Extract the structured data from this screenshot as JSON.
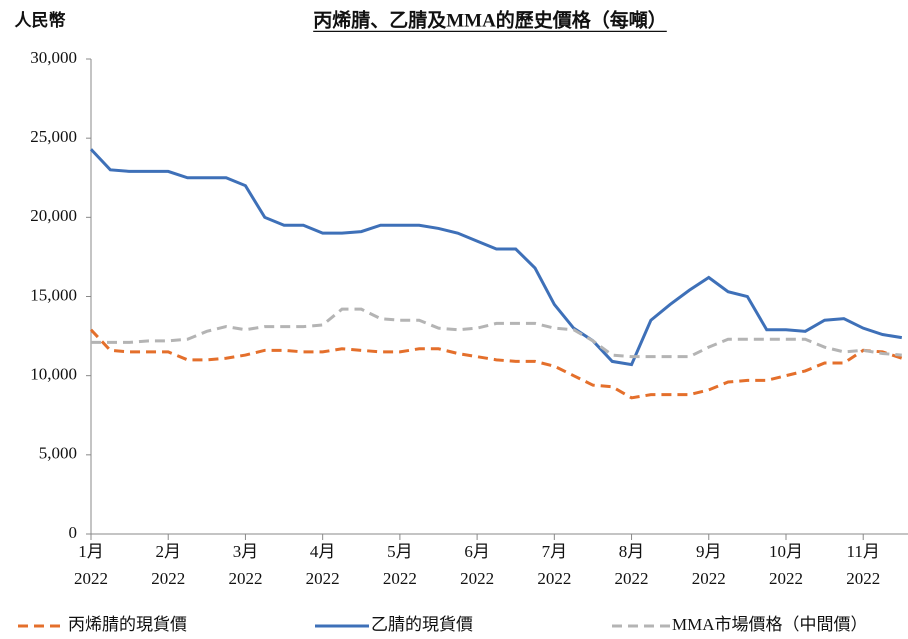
{
  "chart_data": {
    "type": "line",
    "title": "丙烯腈、乙腈及MMA的歷史價格（每噸）",
    "y_axis_label": "人民幣",
    "x": [
      0,
      0.25,
      0.5,
      0.75,
      1,
      1.25,
      1.5,
      1.75,
      2,
      2.25,
      2.5,
      2.75,
      3,
      3.25,
      3.5,
      3.75,
      4,
      4.25,
      4.5,
      4.75,
      5,
      5.25,
      5.5,
      5.75,
      6,
      6.25,
      6.5,
      6.75,
      7,
      7.25,
      7.5,
      7.75,
      8,
      8.25,
      8.5,
      8.75,
      9,
      9.25,
      9.5,
      9.75,
      10,
      10.25,
      10.5
    ],
    "xlim": [
      0,
      10.58
    ],
    "xticks": [
      {
        "value": 0,
        "label": [
          "1月",
          "2022"
        ]
      },
      {
        "value": 1,
        "label": [
          "2月",
          "2022"
        ]
      },
      {
        "value": 2,
        "label": [
          "3月",
          "2022"
        ]
      },
      {
        "value": 3,
        "label": [
          "4月",
          "2022"
        ]
      },
      {
        "value": 4,
        "label": [
          "5月",
          "2022"
        ]
      },
      {
        "value": 5,
        "label": [
          "6月",
          "2022"
        ]
      },
      {
        "value": 6,
        "label": [
          "7月",
          "2022"
        ]
      },
      {
        "value": 7,
        "label": [
          "8月",
          "2022"
        ]
      },
      {
        "value": 8,
        "label": [
          "9月",
          "2022"
        ]
      },
      {
        "value": 9,
        "label": [
          "10月",
          "2022"
        ]
      },
      {
        "value": 10,
        "label": [
          "11月",
          "2022"
        ]
      }
    ],
    "ylim": [
      0,
      30000
    ],
    "yticks": [
      0,
      {
        "value": 5000,
        "label": "5,000"
      },
      {
        "value": 10000,
        "label": "10,000"
      },
      {
        "value": 15000,
        "label": "15,000"
      },
      {
        "value": 20000,
        "label": "20,000"
      },
      {
        "value": 25000,
        "label": "25,000"
      },
      {
        "value": 30000,
        "label": "30,000"
      }
    ],
    "grid": false,
    "legend": "bottom",
    "series": [
      {
        "name": "丙烯腈的現貨價",
        "color": "#e46f2b",
        "dash": "dashed",
        "values": [
          12900,
          11600,
          11500,
          11500,
          11500,
          11000,
          11000,
          11100,
          11300,
          11600,
          11600,
          11500,
          11500,
          11700,
          11600,
          11500,
          11500,
          11700,
          11700,
          11400,
          11200,
          11000,
          10900,
          10900,
          10600,
          10000,
          9400,
          9300,
          8600,
          8800,
          8800,
          8800,
          9100,
          9600,
          9700,
          9700,
          10000,
          10300,
          10800,
          10800,
          11600,
          11500,
          11100
        ]
      },
      {
        "name": "乙腈的現貨價",
        "color": "#3e70b8",
        "dash": "solid",
        "values": [
          24300,
          23000,
          22900,
          22900,
          22900,
          22500,
          22500,
          22500,
          22000,
          20000,
          19500,
          19500,
          19000,
          19000,
          19100,
          19500,
          19500,
          19500,
          19300,
          19000,
          18500,
          18000,
          18000,
          16800,
          14500,
          13000,
          12200,
          10900,
          10700,
          13500,
          14500,
          15400,
          16200,
          15300,
          15000,
          12900,
          12900,
          12800,
          13500,
          13600,
          13000,
          12600,
          12400
        ]
      },
      {
        "name": "MMA市場價格（中間價）",
        "color": "#b4b4b4",
        "dash": "dashed",
        "values": [
          12100,
          12100,
          12100,
          12200,
          12200,
          12300,
          12800,
          13100,
          12900,
          13100,
          13100,
          13100,
          13200,
          14200,
          14200,
          13600,
          13500,
          13500,
          13000,
          12900,
          13000,
          13300,
          13300,
          13300,
          13000,
          12900,
          12200,
          11300,
          11200,
          11200,
          11200,
          11200,
          11800,
          12300,
          12300,
          12300,
          12300,
          12300,
          11800,
          11500,
          11600,
          11400,
          11300
        ]
      }
    ]
  }
}
